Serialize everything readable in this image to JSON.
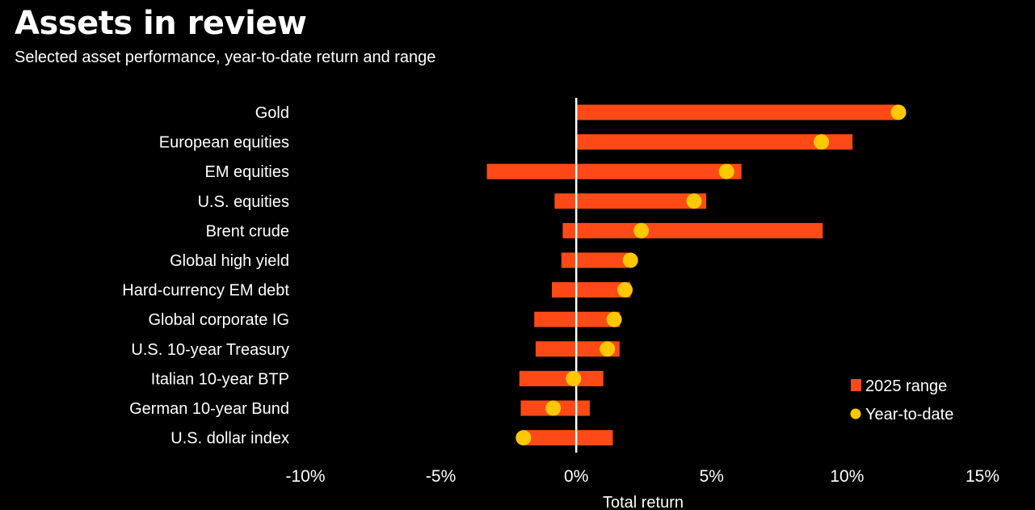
{
  "title": "Assets in review",
  "subtitle": "Selected asset performance, year-to-date return and range",
  "colors": {
    "range": "#FF4A17",
    "ytd": "#FFC800",
    "zero_line": "#FFFFFF",
    "background": "#000000"
  },
  "chart_data": {
    "type": "bar",
    "orientation": "horizontal",
    "title": "Assets in review",
    "subtitle": "Selected asset performance, year-to-date return and range",
    "xlabel": "Total return",
    "ylabel": "",
    "xlim": [
      -10,
      15
    ],
    "x_ticks": [
      -10,
      -5,
      0,
      5,
      10,
      15
    ],
    "x_tick_labels": [
      "-10%",
      "-5%",
      "0%",
      "5%",
      "10%",
      "15%"
    ],
    "grid": false,
    "legend_position": "bottom-right",
    "categories": [
      "Gold",
      "European equities",
      "EM equities",
      "U.S. equities",
      "Brent crude",
      "Global high yield",
      "Hard-currency EM debt",
      "Global corporate IG",
      "U.S. 10-year Treasury",
      "Italian 10-year BTP",
      "German 10-year Bund",
      "U.S. dollar index"
    ],
    "series": [
      {
        "name": "2025 range",
        "marker": "bar",
        "low": [
          0.0,
          0.0,
          -3.3,
          -0.8,
          -0.5,
          -0.55,
          -0.9,
          -1.55,
          -1.5,
          -2.1,
          -2.05,
          -1.9
        ],
        "high": [
          11.9,
          10.2,
          6.1,
          4.8,
          9.1,
          1.9,
          2.0,
          1.6,
          1.6,
          1.0,
          0.5,
          1.35
        ]
      },
      {
        "name": "Year-to-date",
        "marker": "dot",
        "values": [
          11.9,
          9.05,
          5.55,
          4.35,
          2.4,
          2.0,
          1.8,
          1.4,
          1.15,
          -0.1,
          -0.85,
          -1.95
        ]
      }
    ]
  }
}
